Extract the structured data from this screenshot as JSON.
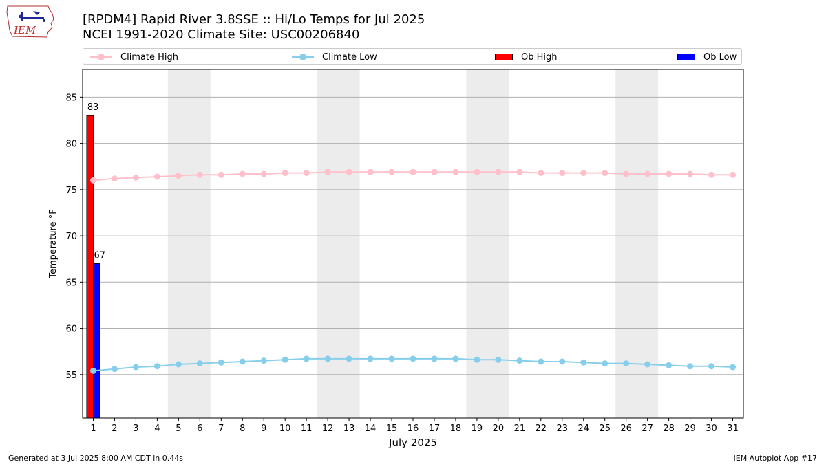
{
  "header": {
    "logo_text": "IEM",
    "title_line1": "[RPDM4] Rapid River 3.8SSE :: Hi/Lo Temps for Jul 2025",
    "title_line2": "NCEI 1991-2020 Climate Site: USC00206840"
  },
  "legend": {
    "climate_high": "Climate High",
    "climate_low": "Climate Low",
    "ob_high": "Ob High",
    "ob_low": "Ob Low"
  },
  "colors": {
    "climate_high": "#ffc0cb",
    "climate_low": "#87ceeb",
    "ob_high": "#ff0000",
    "ob_low": "#0000ff",
    "weekend_band": "#ececec",
    "grid": "#b0b0b0"
  },
  "chart_data": {
    "type": "bar",
    "xlabel": "July 2025",
    "ylabel": "Temperature °F",
    "ylim": [
      50.3,
      88
    ],
    "yticks": [
      55,
      60,
      65,
      70,
      75,
      80,
      85
    ],
    "xlim": [
      0.5,
      31.5
    ],
    "x": [
      1,
      2,
      3,
      4,
      5,
      6,
      7,
      8,
      9,
      10,
      11,
      12,
      13,
      14,
      15,
      16,
      17,
      18,
      19,
      20,
      21,
      22,
      23,
      24,
      25,
      26,
      27,
      28,
      29,
      30,
      31
    ],
    "grid": "horizontal",
    "legend_position": "top",
    "weekend_bands": [
      [
        4.5,
        6.5
      ],
      [
        11.5,
        13.5
      ],
      [
        18.5,
        20.5
      ],
      [
        25.5,
        27.5
      ]
    ],
    "series": [
      {
        "name": "Climate High",
        "kind": "line",
        "values": [
          76.0,
          76.2,
          76.3,
          76.4,
          76.5,
          76.6,
          76.6,
          76.7,
          76.7,
          76.8,
          76.8,
          76.9,
          76.9,
          76.9,
          76.9,
          76.9,
          76.9,
          76.9,
          76.9,
          76.9,
          76.9,
          76.8,
          76.8,
          76.8,
          76.8,
          76.7,
          76.7,
          76.7,
          76.7,
          76.6,
          76.6
        ]
      },
      {
        "name": "Climate Low",
        "kind": "line",
        "values": [
          55.4,
          55.6,
          55.8,
          55.9,
          56.1,
          56.2,
          56.3,
          56.4,
          56.5,
          56.6,
          56.7,
          56.7,
          56.7,
          56.7,
          56.7,
          56.7,
          56.7,
          56.7,
          56.6,
          56.6,
          56.5,
          56.4,
          56.4,
          56.3,
          56.2,
          56.2,
          56.1,
          56.0,
          55.9,
          55.9,
          55.8
        ]
      },
      {
        "name": "Ob High",
        "kind": "bar",
        "x": [
          1
        ],
        "values": [
          83
        ],
        "labels": [
          "83"
        ]
      },
      {
        "name": "Ob Low",
        "kind": "bar",
        "x": [
          1
        ],
        "values": [
          67
        ],
        "labels": [
          "67"
        ]
      }
    ]
  },
  "footer": {
    "left": "Generated at 3 Jul 2025 8:00 AM CDT in 0.44s",
    "right": "IEM Autoplot App #17"
  }
}
